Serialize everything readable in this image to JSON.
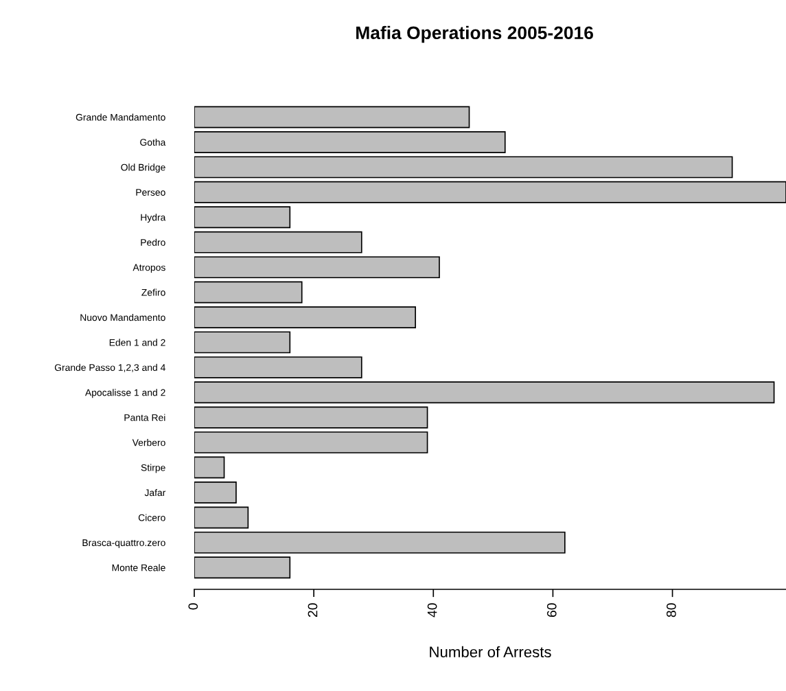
{
  "chart_data": {
    "type": "bar",
    "orientation": "horizontal",
    "title": "Mafia Operations 2005-2016",
    "xlabel": "Number of Arrests",
    "categories": [
      "Grande Mandamento",
      "Gotha",
      "Old Bridge",
      "Perseo",
      "Hydra",
      "Pedro",
      "Atropos",
      "Zefiro",
      "Nuovo Mandamento",
      "Eden 1 and 2",
      "Grande Passo 1,2,3 and 4",
      "Apocalisse 1 and 2",
      "Panta Rei",
      "Verbero",
      "Stirpe",
      "Jafar",
      "Cicero",
      "Brasca-quattro.zero",
      "Monte Reale"
    ],
    "values": [
      46,
      52,
      90,
      99,
      16,
      28,
      41,
      18,
      37,
      16,
      28,
      97,
      39,
      39,
      5,
      7,
      9,
      62,
      16
    ],
    "color": "#bebebe",
    "xlim": [
      0,
      99
    ],
    "xticks": [
      0,
      20,
      40,
      60,
      80
    ],
    "grid": false,
    "legend": false
  }
}
